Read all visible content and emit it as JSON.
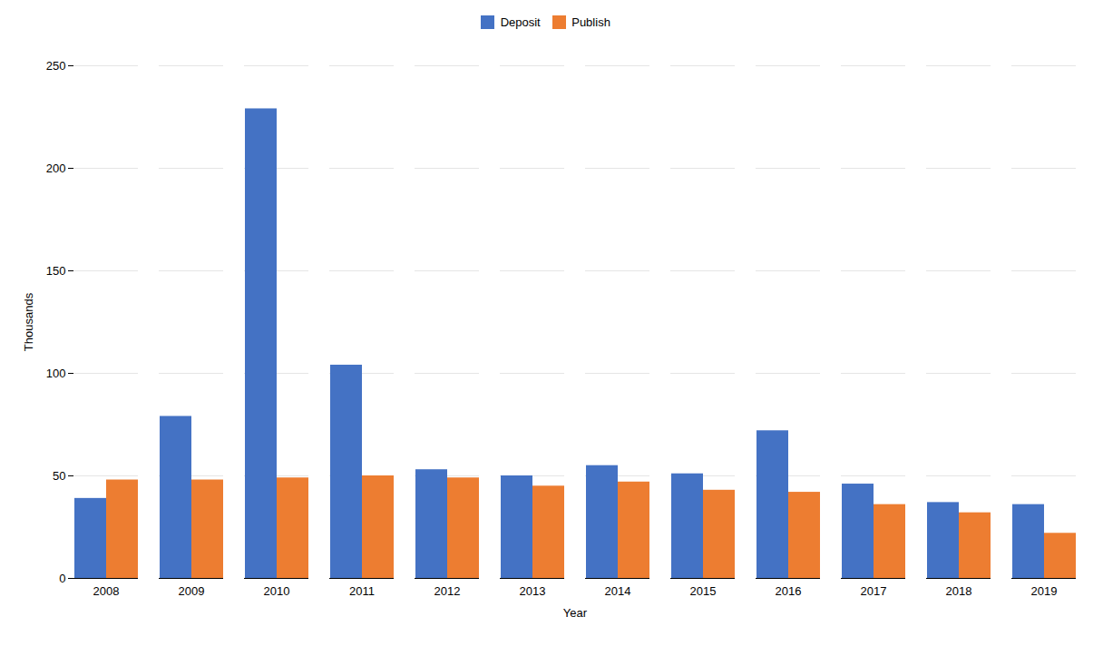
{
  "chart_data": {
    "type": "bar",
    "categories": [
      "2008",
      "2009",
      "2010",
      "2011",
      "2012",
      "2013",
      "2014",
      "2015",
      "2016",
      "2017",
      "2018",
      "2019"
    ],
    "series": [
      {
        "name": "Deposit",
        "color": "#4472C4",
        "values": [
          39,
          79,
          229,
          104,
          53,
          50,
          55,
          51,
          72,
          46,
          37,
          36
        ]
      },
      {
        "name": "Publish",
        "color": "#ED7D31",
        "values": [
          48,
          48,
          49,
          50,
          49,
          45,
          47,
          43,
          42,
          36,
          32,
          22
        ]
      }
    ],
    "xlabel": "Year",
    "ylabel": "Thousands",
    "ylim": [
      0,
      250
    ],
    "yticks": [
      0,
      50,
      100,
      150,
      200,
      250
    ],
    "grid": true,
    "legend": "top"
  }
}
